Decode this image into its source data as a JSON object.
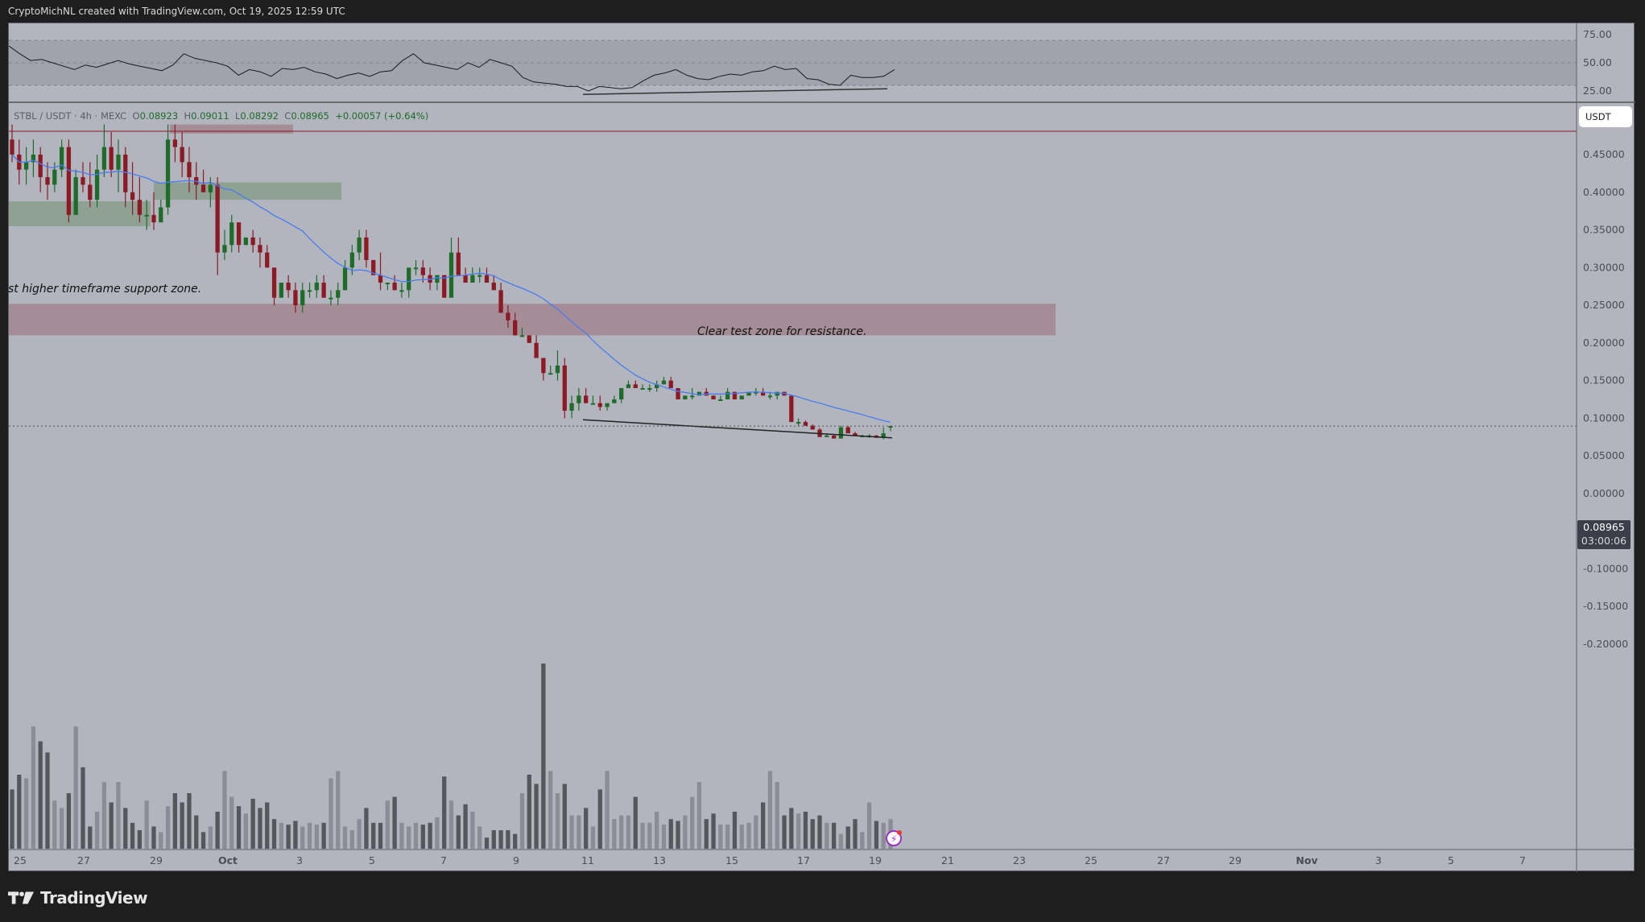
{
  "header": {
    "caption": "CryptoMichNL created with TradingView.com, Oct 19, 2025 12:59 UTC"
  },
  "legend": {
    "symbol": "STBL / USDT · 4h · MEXC",
    "open_label": "O",
    "open": "0.08923",
    "high_label": "H",
    "high": "0.09011",
    "low_label": "L",
    "low": "0.08292",
    "close_label": "C",
    "close": "0.08965",
    "change": "+0.00057 (+0.64%)"
  },
  "price_axis": {
    "currency_button": "USDT",
    "last_price": "0.08965",
    "countdown": "03:00:06",
    "ticks": [
      "0.45000",
      "0.40000",
      "0.35000",
      "0.30000",
      "0.25000",
      "0.20000",
      "0.15000",
      "0.10000",
      "0.05000",
      "0.00000",
      "-0.05000",
      "-0.10000",
      "-0.15000",
      "-0.20000"
    ]
  },
  "rsi_axis": {
    "ticks": [
      "75.00",
      "50.00",
      "25.00"
    ]
  },
  "time_axis": {
    "ticks": [
      "25",
      "27",
      "29",
      "Oct",
      "3",
      "5",
      "7",
      "9",
      "11",
      "13",
      "15",
      "17",
      "19",
      "21",
      "23",
      "25",
      "27",
      "29",
      "Nov",
      "3",
      "5",
      "7"
    ]
  },
  "annotations": {
    "support_note": "st higher timeframe support zone.",
    "resistance_note": "Clear test zone for resistance."
  },
  "footer": {
    "brand": "TradingView"
  },
  "colors": {
    "background": "#b2b5be",
    "bull": "#1e6b2a",
    "bear": "#8b1a25",
    "ma": "#4a7cf0",
    "resistance_zone": "#a38b93",
    "support_zone": "#8ca08f",
    "volume_up": "#8a8c96",
    "volume_down": "#55575d"
  },
  "chart_data": {
    "type": "candlestick",
    "title": "STBL / USDT · 4h · MEXC",
    "xlabel": "",
    "ylabel": "USDT",
    "ylim": [
      -0.22,
      0.48
    ],
    "x_ticks": [
      "25",
      "27",
      "29",
      "Oct",
      "3",
      "5",
      "7",
      "9",
      "11",
      "13",
      "15",
      "17",
      "19",
      "21",
      "23",
      "25",
      "27",
      "29",
      "Nov",
      "3",
      "5",
      "7"
    ],
    "last": {
      "open": 0.08923,
      "high": 0.09011,
      "low": 0.08292,
      "close": 0.08965,
      "change": 0.00057,
      "change_pct": 0.64
    },
    "ohlc_approx": [
      [
        0.47,
        0.49,
        0.44,
        0.45
      ],
      [
        0.45,
        0.47,
        0.41,
        0.43
      ],
      [
        0.43,
        0.46,
        0.41,
        0.44
      ],
      [
        0.44,
        0.47,
        0.42,
        0.45
      ],
      [
        0.45,
        0.46,
        0.4,
        0.42
      ],
      [
        0.42,
        0.44,
        0.39,
        0.41
      ],
      [
        0.41,
        0.44,
        0.4,
        0.43
      ],
      [
        0.43,
        0.47,
        0.42,
        0.46
      ],
      [
        0.46,
        0.47,
        0.36,
        0.37
      ],
      [
        0.37,
        0.43,
        0.37,
        0.42
      ],
      [
        0.42,
        0.44,
        0.4,
        0.41
      ],
      [
        0.41,
        0.44,
        0.38,
        0.39
      ],
      [
        0.39,
        0.45,
        0.38,
        0.43
      ],
      [
        0.43,
        0.49,
        0.42,
        0.46
      ],
      [
        0.46,
        0.48,
        0.42,
        0.43
      ],
      [
        0.43,
        0.47,
        0.4,
        0.45
      ],
      [
        0.45,
        0.46,
        0.38,
        0.4
      ],
      [
        0.4,
        0.44,
        0.37,
        0.39
      ],
      [
        0.39,
        0.42,
        0.36,
        0.37
      ],
      [
        0.37,
        0.39,
        0.35,
        0.37
      ],
      [
        0.37,
        0.4,
        0.35,
        0.36
      ],
      [
        0.36,
        0.39,
        0.37,
        0.38
      ],
      [
        0.38,
        0.49,
        0.37,
        0.47
      ],
      [
        0.47,
        0.49,
        0.44,
        0.46
      ],
      [
        0.46,
        0.48,
        0.42,
        0.44
      ],
      [
        0.44,
        0.46,
        0.4,
        0.42
      ],
      [
        0.42,
        0.44,
        0.39,
        0.41
      ],
      [
        0.41,
        0.43,
        0.4,
        0.4
      ],
      [
        0.4,
        0.42,
        0.38,
        0.41
      ],
      [
        0.41,
        0.42,
        0.29,
        0.32
      ],
      [
        0.32,
        0.35,
        0.31,
        0.33
      ],
      [
        0.33,
        0.37,
        0.32,
        0.36
      ],
      [
        0.36,
        0.36,
        0.32,
        0.33
      ],
      [
        0.33,
        0.34,
        0.33,
        0.34
      ],
      [
        0.34,
        0.35,
        0.32,
        0.33
      ],
      [
        0.33,
        0.34,
        0.3,
        0.32
      ],
      [
        0.32,
        0.33,
        0.3,
        0.3
      ],
      [
        0.3,
        0.3,
        0.25,
        0.26
      ],
      [
        0.26,
        0.28,
        0.26,
        0.28
      ],
      [
        0.28,
        0.29,
        0.26,
        0.27
      ],
      [
        0.27,
        0.28,
        0.24,
        0.25
      ],
      [
        0.25,
        0.28,
        0.24,
        0.27
      ],
      [
        0.27,
        0.28,
        0.26,
        0.27
      ],
      [
        0.27,
        0.29,
        0.26,
        0.28
      ],
      [
        0.28,
        0.29,
        0.26,
        0.26
      ],
      [
        0.26,
        0.27,
        0.25,
        0.26
      ],
      [
        0.26,
        0.28,
        0.25,
        0.27
      ],
      [
        0.27,
        0.31,
        0.27,
        0.3
      ],
      [
        0.3,
        0.33,
        0.29,
        0.32
      ],
      [
        0.32,
        0.35,
        0.31,
        0.34
      ],
      [
        0.34,
        0.35,
        0.3,
        0.31
      ],
      [
        0.31,
        0.31,
        0.29,
        0.29
      ],
      [
        0.29,
        0.32,
        0.27,
        0.28
      ],
      [
        0.28,
        0.28,
        0.27,
        0.28
      ],
      [
        0.28,
        0.29,
        0.27,
        0.27
      ],
      [
        0.27,
        0.28,
        0.26,
        0.27
      ],
      [
        0.27,
        0.29,
        0.26,
        0.3
      ],
      [
        0.3,
        0.31,
        0.29,
        0.3
      ],
      [
        0.3,
        0.31,
        0.28,
        0.29
      ],
      [
        0.29,
        0.3,
        0.27,
        0.28
      ],
      [
        0.28,
        0.29,
        0.27,
        0.29
      ],
      [
        0.29,
        0.29,
        0.26,
        0.26
      ],
      [
        0.26,
        0.34,
        0.26,
        0.32
      ],
      [
        0.32,
        0.34,
        0.29,
        0.29
      ],
      [
        0.29,
        0.3,
        0.28,
        0.28
      ],
      [
        0.28,
        0.3,
        0.28,
        0.29
      ],
      [
        0.29,
        0.3,
        0.28,
        0.29
      ],
      [
        0.29,
        0.3,
        0.28,
        0.28
      ],
      [
        0.28,
        0.29,
        0.27,
        0.27
      ],
      [
        0.27,
        0.28,
        0.24,
        0.24
      ],
      [
        0.24,
        0.25,
        0.22,
        0.23
      ],
      [
        0.23,
        0.24,
        0.21,
        0.21
      ],
      [
        0.21,
        0.22,
        0.21,
        0.21
      ],
      [
        0.21,
        0.21,
        0.2,
        0.2
      ],
      [
        0.2,
        0.21,
        0.18,
        0.18
      ],
      [
        0.18,
        0.18,
        0.15,
        0.16
      ],
      [
        0.16,
        0.17,
        0.16,
        0.16
      ],
      [
        0.16,
        0.19,
        0.15,
        0.17
      ],
      [
        0.17,
        0.18,
        0.1,
        0.11
      ],
      [
        0.11,
        0.13,
        0.1,
        0.12
      ],
      [
        0.12,
        0.14,
        0.11,
        0.13
      ],
      [
        0.13,
        0.14,
        0.12,
        0.12
      ],
      [
        0.12,
        0.13,
        0.12,
        0.12
      ],
      [
        0.12,
        0.13,
        0.11,
        0.115
      ],
      [
        0.115,
        0.12,
        0.11,
        0.12
      ],
      [
        0.12,
        0.13,
        0.12,
        0.125
      ],
      [
        0.125,
        0.14,
        0.12,
        0.14
      ],
      [
        0.14,
        0.15,
        0.14,
        0.145
      ],
      [
        0.145,
        0.15,
        0.14,
        0.14
      ],
      [
        0.14,
        0.145,
        0.14,
        0.14
      ],
      [
        0.14,
        0.145,
        0.135,
        0.14
      ],
      [
        0.14,
        0.15,
        0.135,
        0.145
      ],
      [
        0.145,
        0.155,
        0.145,
        0.15
      ],
      [
        0.15,
        0.155,
        0.14,
        0.14
      ],
      [
        0.14,
        0.14,
        0.125,
        0.125
      ],
      [
        0.125,
        0.13,
        0.125,
        0.13
      ],
      [
        0.13,
        0.14,
        0.125,
        0.13
      ],
      [
        0.13,
        0.135,
        0.13,
        0.135
      ],
      [
        0.135,
        0.14,
        0.13,
        0.13
      ],
      [
        0.13,
        0.13,
        0.125,
        0.125
      ],
      [
        0.125,
        0.13,
        0.125,
        0.125
      ],
      [
        0.125,
        0.14,
        0.125,
        0.135
      ],
      [
        0.135,
        0.135,
        0.125,
        0.125
      ],
      [
        0.125,
        0.13,
        0.125,
        0.13
      ],
      [
        0.13,
        0.135,
        0.13,
        0.135
      ],
      [
        0.135,
        0.14,
        0.13,
        0.135
      ],
      [
        0.135,
        0.14,
        0.13,
        0.13
      ],
      [
        0.13,
        0.135,
        0.125,
        0.13
      ],
      [
        0.13,
        0.135,
        0.125,
        0.135
      ],
      [
        0.135,
        0.135,
        0.13,
        0.13
      ],
      [
        0.13,
        0.13,
        0.095,
        0.095
      ],
      [
        0.095,
        0.1,
        0.09,
        0.095
      ],
      [
        0.095,
        0.097,
        0.09,
        0.09
      ],
      [
        0.09,
        0.092,
        0.085,
        0.085
      ],
      [
        0.085,
        0.087,
        0.075,
        0.075
      ],
      [
        0.075,
        0.08,
        0.075,
        0.077
      ],
      [
        0.077,
        0.078,
        0.073,
        0.073
      ],
      [
        0.073,
        0.09,
        0.073,
        0.088
      ],
      [
        0.088,
        0.09,
        0.08,
        0.08
      ],
      [
        0.08,
        0.082,
        0.077,
        0.077
      ],
      [
        0.077,
        0.078,
        0.076,
        0.077
      ],
      [
        0.077,
        0.079,
        0.074,
        0.077
      ],
      [
        0.077,
        0.078,
        0.076,
        0.074
      ],
      [
        0.074,
        0.088,
        0.072,
        0.08
      ],
      [
        0.08923,
        0.09011,
        0.08292,
        0.08965
      ]
    ],
    "moving_average": {
      "color": "#4a7cf0",
      "note": "blue MA overlay trending down from ~0.42 to ~0.097"
    },
    "zones": [
      {
        "type": "resistance",
        "from": 0.21,
        "to": 0.252,
        "label": "Clear test zone for resistance."
      },
      {
        "type": "support",
        "from": 0.39,
        "to": 0.413
      },
      {
        "type": "support",
        "from": 0.355,
        "to": 0.388,
        "label": "st higher timeframe support zone."
      },
      {
        "type": "resistance",
        "from": 0.478,
        "to": 0.49
      }
    ],
    "trendline": {
      "from": {
        "x": "Oct 11",
        "y": 0.098
      },
      "to": {
        "x": "Oct 19",
        "y": 0.074
      }
    },
    "rsi": {
      "ticks": [
        75,
        50,
        25
      ],
      "ylim": [
        15,
        85
      ],
      "values_approx": [
        65,
        58,
        52,
        53,
        50,
        47,
        44,
        48,
        46,
        49,
        52,
        49,
        47,
        45,
        43,
        48,
        58,
        54,
        52,
        50,
        47,
        39,
        44,
        42,
        38,
        45,
        44,
        46,
        42,
        40,
        36,
        39,
        41,
        38,
        42,
        43,
        52,
        58,
        50,
        48,
        46,
        44,
        50,
        46,
        53,
        50,
        47,
        37,
        33,
        32,
        31,
        29,
        29,
        25,
        29,
        28,
        27,
        28,
        34,
        39,
        41,
        44,
        39,
        36,
        35,
        38,
        40,
        39,
        42,
        43,
        47,
        44,
        45,
        36,
        35,
        31,
        30,
        39,
        37,
        37,
        38,
        44
      ]
    },
    "volume": {
      "values_approx": [
        32,
        40,
        38,
        66,
        58,
        52,
        26,
        22,
        30,
        66,
        44,
        12,
        20,
        36,
        25,
        36,
        22,
        14,
        10,
        26,
        12,
        9,
        23,
        30,
        25,
        30,
        18,
        9,
        12,
        20,
        42,
        28,
        23,
        19,
        27,
        22,
        25,
        16,
        14,
        13,
        15,
        12,
        14,
        13,
        14,
        38,
        42,
        12,
        10,
        16,
        22,
        14,
        14,
        26,
        28,
        14,
        12,
        14,
        13,
        14,
        17,
        39,
        26,
        18,
        24,
        20,
        12,
        6,
        10,
        10,
        10,
        8,
        30,
        40,
        35,
        100,
        42,
        30,
        35,
        18,
        18,
        22,
        12,
        32,
        42,
        16,
        18,
        18,
        28,
        14,
        14,
        20,
        13,
        16,
        15,
        18,
        28,
        36,
        16,
        19,
        13,
        13,
        20,
        13,
        14,
        18,
        25,
        42,
        36,
        18,
        22,
        19,
        20,
        16,
        18,
        14,
        14,
        8,
        12,
        16,
        9,
        25,
        15,
        14,
        16,
        15,
        13,
        30,
        36,
        22,
        42,
        18
      ],
      "up_color": "#8a8c96",
      "down_color": "#55575d"
    }
  }
}
